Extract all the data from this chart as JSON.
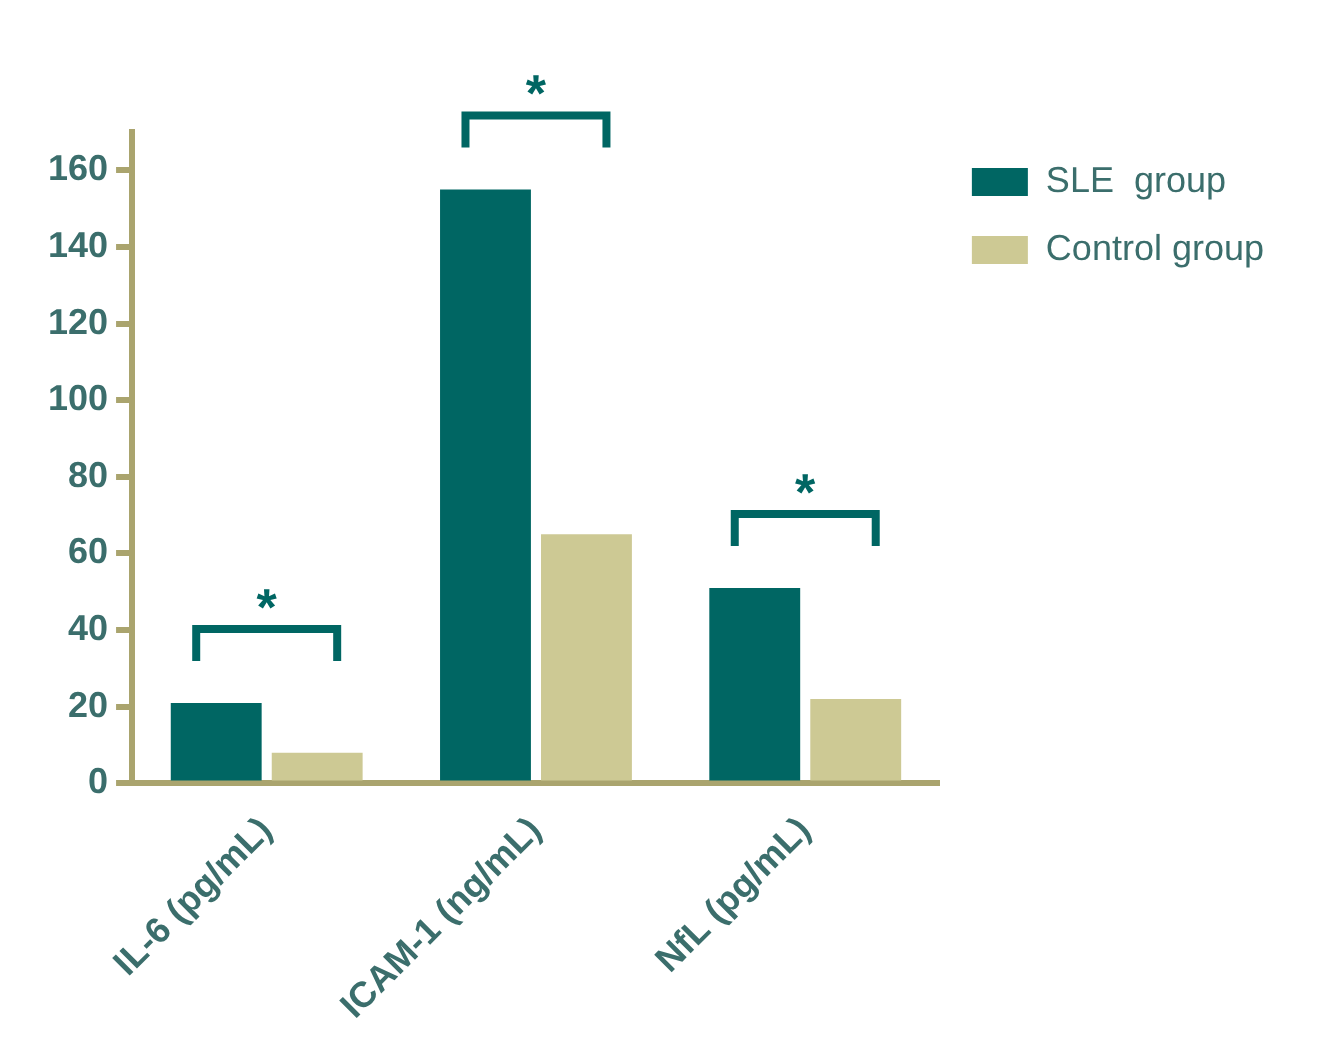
{
  "chart_data": {
    "type": "bar",
    "categories": [
      "IL-6 (pg/mL)",
      "ICAM-1 (ng/mL)",
      "NfL (pg/mL)"
    ],
    "series": [
      {
        "name": "SLE  group",
        "color": "#006663",
        "values": [
          21,
          155,
          51
        ]
      },
      {
        "name": "Control group",
        "color": "#cdc994",
        "values": [
          8,
          65,
          22
        ]
      }
    ],
    "ylim": [
      0,
      170
    ],
    "yticks": [
      0,
      20,
      40,
      60,
      80,
      100,
      120,
      140,
      160
    ],
    "grid": false,
    "legend": "top right",
    "annotations": [
      "*",
      "*",
      "*"
    ]
  }
}
